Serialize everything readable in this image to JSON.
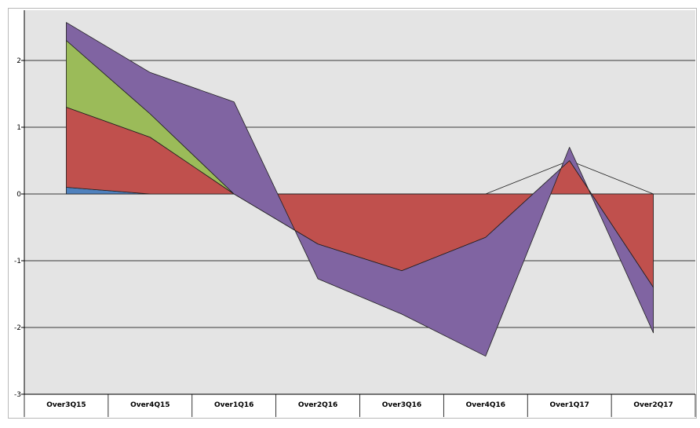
{
  "chart_data": {
    "type": "area",
    "categories": [
      "Over3Q15",
      "Over4Q15",
      "Over1Q16",
      "Over2Q16",
      "Over3Q16",
      "Over4Q16",
      "Over1Q17",
      "Over2Q17"
    ],
    "ylim": [
      -3,
      2.6
    ],
    "yticks": [
      2,
      1,
      0,
      -1,
      -2,
      -3
    ],
    "grid": true,
    "series": [
      {
        "color": "#4f81bd",
        "values": [
          0.1,
          0.0,
          0.0,
          0.0,
          0.0,
          0.0,
          0.0,
          0.0
        ]
      },
      {
        "color": "#c0504d",
        "values": [
          1.2,
          0.85,
          0.0,
          -0.75,
          -1.15,
          -0.65,
          0.5,
          -1.4
        ]
      },
      {
        "color": "#9bbb59",
        "values": [
          1.0,
          0.35,
          0.0,
          0.0,
          0.0,
          0.0,
          0.0,
          0.0
        ]
      },
      {
        "color": "#8064a2",
        "values": [
          0.27,
          0.62,
          1.38,
          -0.52,
          -0.65,
          -1.78,
          0.2,
          -0.68
        ]
      }
    ]
  }
}
